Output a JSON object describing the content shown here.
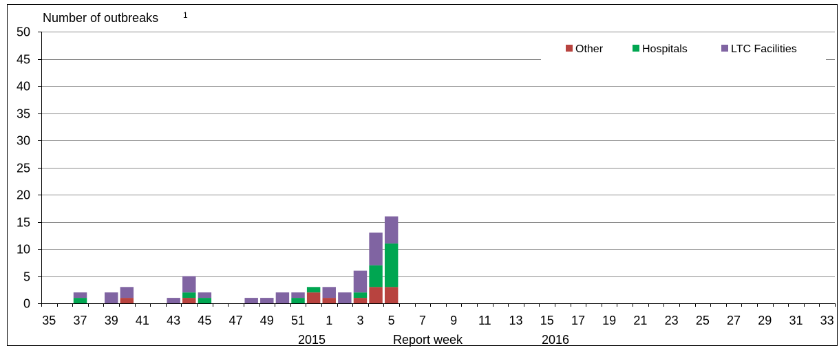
{
  "chart_data": {
    "type": "bar",
    "stacked": true,
    "title": "Number of outbreaks",
    "title_superscript": "1",
    "xlabel": "Report week",
    "year_labels": [
      "2015",
      "2016"
    ],
    "ylim": [
      0,
      50
    ],
    "yticks": [
      0,
      5,
      10,
      15,
      20,
      25,
      30,
      35,
      40,
      45,
      50
    ],
    "grid": true,
    "legend_position": "top-right",
    "categories": [
      35,
      36,
      37,
      38,
      39,
      40,
      41,
      42,
      43,
      44,
      45,
      46,
      47,
      48,
      49,
      50,
      51,
      52,
      1,
      2,
      3,
      4,
      5,
      6,
      7,
      8,
      9,
      10,
      11,
      12,
      13,
      14,
      15,
      16,
      17,
      18,
      19,
      20,
      21,
      22,
      23,
      24,
      25,
      26,
      27,
      28,
      29,
      30,
      31,
      32,
      33
    ],
    "x_tick_labels": [
      "35",
      "37",
      "39",
      "41",
      "43",
      "45",
      "47",
      "49",
      "51",
      "1",
      "3",
      "5",
      "7",
      "9",
      "11",
      "13",
      "15",
      "17",
      "19",
      "21",
      "23",
      "25",
      "27",
      "29",
      "31",
      "33"
    ],
    "series": [
      {
        "name": "Other",
        "color": "#b8433f",
        "values": [
          0,
          0,
          0,
          0,
          0,
          1,
          0,
          0,
          0,
          1,
          0,
          0,
          0,
          0,
          0,
          0,
          0,
          2,
          1,
          0,
          1,
          3,
          3,
          0,
          0,
          0,
          0,
          0,
          0,
          0,
          0,
          0,
          0,
          0,
          0,
          0,
          0,
          0,
          0,
          0,
          0,
          0,
          0,
          0,
          0,
          0,
          0,
          0,
          0,
          0,
          0
        ]
      },
      {
        "name": "Hospitals",
        "color": "#00a651",
        "values": [
          0,
          0,
          1,
          0,
          0,
          0,
          0,
          0,
          0,
          1,
          1,
          0,
          0,
          0,
          0,
          0,
          1,
          1,
          0,
          0,
          1,
          4,
          8,
          0,
          0,
          0,
          0,
          0,
          0,
          0,
          0,
          0,
          0,
          0,
          0,
          0,
          0,
          0,
          0,
          0,
          0,
          0,
          0,
          0,
          0,
          0,
          0,
          0,
          0,
          0,
          0
        ]
      },
      {
        "name": "LTC Facilities",
        "color": "#8064a2",
        "values": [
          0,
          0,
          1,
          0,
          2,
          2,
          0,
          0,
          1,
          3,
          1,
          0,
          0,
          1,
          1,
          2,
          1,
          0,
          2,
          2,
          4,
          6,
          5,
          0,
          0,
          0,
          0,
          0,
          0,
          0,
          0,
          0,
          0,
          0,
          0,
          0,
          0,
          0,
          0,
          0,
          0,
          0,
          0,
          0,
          0,
          0,
          0,
          0,
          0,
          0,
          0
        ]
      }
    ]
  }
}
